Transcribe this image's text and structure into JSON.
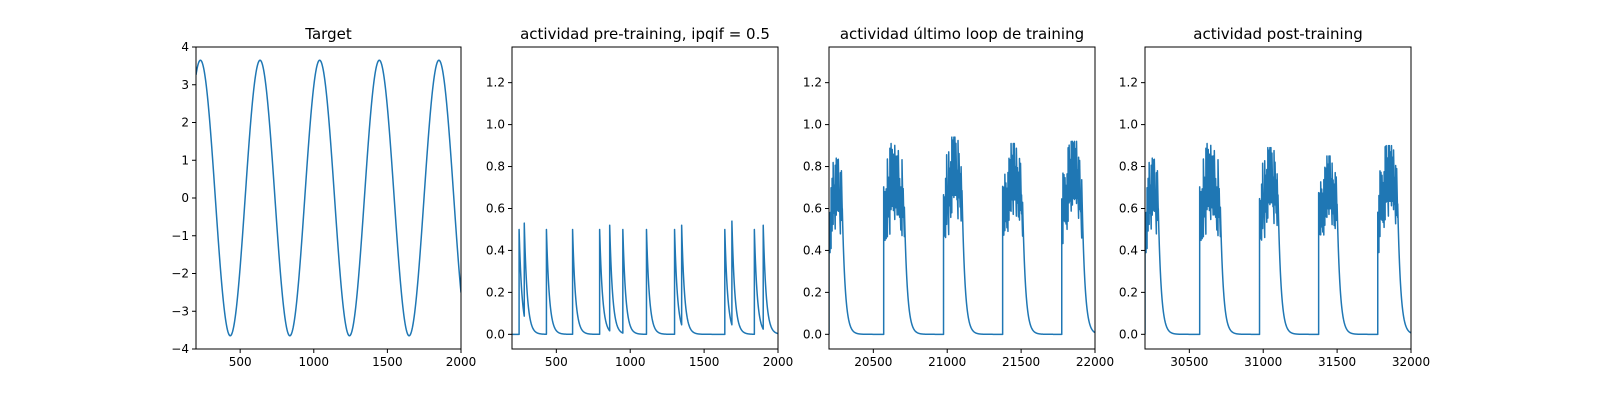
{
  "chart_data": [
    {
      "type": "line",
      "title": "Target",
      "xlim": [
        200,
        2000
      ],
      "ylim": [
        -4,
        4
      ],
      "xticks": [
        500,
        1000,
        1500,
        2000
      ],
      "xtick_labels": [
        "500",
        "1000",
        "1500",
        "2000"
      ],
      "yticks": [
        -4,
        -3,
        -2,
        -1,
        0,
        1,
        2,
        3,
        4
      ],
      "ytick_labels": [
        "−4",
        "−3",
        "−2",
        "−1",
        "0",
        "1",
        "2",
        "3",
        "4"
      ],
      "grid": false,
      "series_color": "#1f77b4",
      "signal": {
        "kind": "sine",
        "x_start": 200,
        "x_end": 2000,
        "amplitude": 3.65,
        "period": 405,
        "peak_x": [
          230,
          625,
          1030,
          1430,
          1835
        ],
        "trough_x": [
          428,
          830,
          1230,
          1632
        ]
      }
    },
    {
      "type": "line",
      "title": "actividad pre-training, ipqif = 0.5",
      "xlim": [
        200,
        2000
      ],
      "ylim": [
        -0.07,
        1.37
      ],
      "xticks": [
        500,
        1000,
        1500,
        2000
      ],
      "xtick_labels": [
        "500",
        "1000",
        "1500",
        "2000"
      ],
      "yticks": [
        0.0,
        0.2,
        0.4,
        0.6,
        0.8,
        1.0,
        1.2
      ],
      "ytick_labels": [
        "0.0",
        "0.2",
        "0.4",
        "0.6",
        "0.8",
        "1.0",
        "1.2"
      ],
      "grid": false,
      "series_color": "#1f77b4",
      "signal": {
        "kind": "spikes",
        "x_start": 200,
        "x_end": 2000,
        "decay": 20,
        "spike_times": [
          248,
          283,
          433,
          610,
          793,
          861,
          950,
          1110,
          1300,
          1348,
          1640,
          1688,
          1840,
          1900
        ],
        "spike_heights": [
          0.5,
          0.53,
          0.5,
          0.5,
          0.5,
          0.52,
          0.5,
          0.5,
          0.5,
          0.52,
          0.5,
          0.54,
          0.5,
          0.52
        ]
      }
    },
    {
      "type": "line",
      "title": "actividad último loop de training",
      "xlim": [
        20200,
        22000
      ],
      "ylim": [
        -0.07,
        1.37
      ],
      "xticks": [
        20500,
        21000,
        21500,
        22000
      ],
      "xtick_labels": [
        "20500",
        "21000",
        "21500",
        "22000"
      ],
      "yticks": [
        0.0,
        0.2,
        0.4,
        0.6,
        0.8,
        1.0,
        1.2
      ],
      "ytick_labels": [
        "0.0",
        "0.2",
        "0.4",
        "0.6",
        "0.8",
        "1.0",
        "1.2"
      ],
      "grid": false,
      "series_color": "#1f77b4",
      "signal": {
        "kind": "bursts",
        "x_start": 20200,
        "x_end": 22000,
        "decay": 20,
        "bursts": [
          {
            "start": 20200,
            "end": 20290,
            "count": 14,
            "peak": 0.84
          },
          {
            "start": 20570,
            "end": 20710,
            "count": 18,
            "peak": 0.91
          },
          {
            "start": 20975,
            "end": 21100,
            "count": 19,
            "peak": 0.94
          },
          {
            "start": 21375,
            "end": 21510,
            "count": 20,
            "peak": 0.91
          },
          {
            "start": 21775,
            "end": 21910,
            "count": 20,
            "peak": 0.92
          }
        ]
      }
    },
    {
      "type": "line",
      "title": "actividad post-training",
      "xlim": [
        30200,
        32000
      ],
      "ylim": [
        -0.07,
        1.37
      ],
      "xticks": [
        30500,
        31000,
        31500,
        32000
      ],
      "xtick_labels": [
        "30500",
        "31000",
        "31500",
        "32000"
      ],
      "yticks": [
        0.0,
        0.2,
        0.4,
        0.6,
        0.8,
        1.0,
        1.2
      ],
      "ytick_labels": [
        "0.0",
        "0.2",
        "0.4",
        "0.6",
        "0.8",
        "1.0",
        "1.2"
      ],
      "grid": false,
      "series_color": "#1f77b4",
      "signal": {
        "kind": "bursts",
        "x_start": 30200,
        "x_end": 32000,
        "decay": 20,
        "bursts": [
          {
            "start": 30200,
            "end": 30290,
            "count": 14,
            "peak": 0.84
          },
          {
            "start": 30570,
            "end": 30710,
            "count": 18,
            "peak": 0.91
          },
          {
            "start": 30975,
            "end": 31100,
            "count": 19,
            "peak": 0.89
          },
          {
            "start": 31375,
            "end": 31500,
            "count": 19,
            "peak": 0.85
          },
          {
            "start": 31775,
            "end": 31910,
            "count": 20,
            "peak": 0.9
          }
        ]
      }
    }
  ]
}
